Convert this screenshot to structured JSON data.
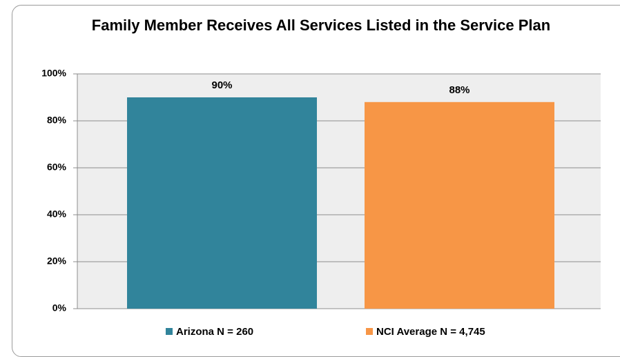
{
  "chart_data": {
    "type": "bar",
    "title": "Family Member Receives All Services Listed in the Service Plan",
    "categories": [
      null
    ],
    "series": [
      {
        "name": "Arizona N = 260",
        "color": "#31849b",
        "values": [
          90
        ],
        "value_labels": [
          "90%"
        ]
      },
      {
        "name": "NCI Average N = 4,745",
        "color": "#f79646",
        "values": [
          88
        ],
        "value_labels": [
          "88%"
        ]
      }
    ],
    "ylim": [
      0,
      100
    ],
    "yticks": [
      {
        "value": 0,
        "label": "0%"
      },
      {
        "value": 20,
        "label": "20%"
      },
      {
        "value": 40,
        "label": "40%"
      },
      {
        "value": 60,
        "label": "60%"
      },
      {
        "value": 80,
        "label": "80%"
      },
      {
        "value": 100,
        "label": "100%"
      }
    ],
    "grid": true,
    "legend": "bottom"
  }
}
